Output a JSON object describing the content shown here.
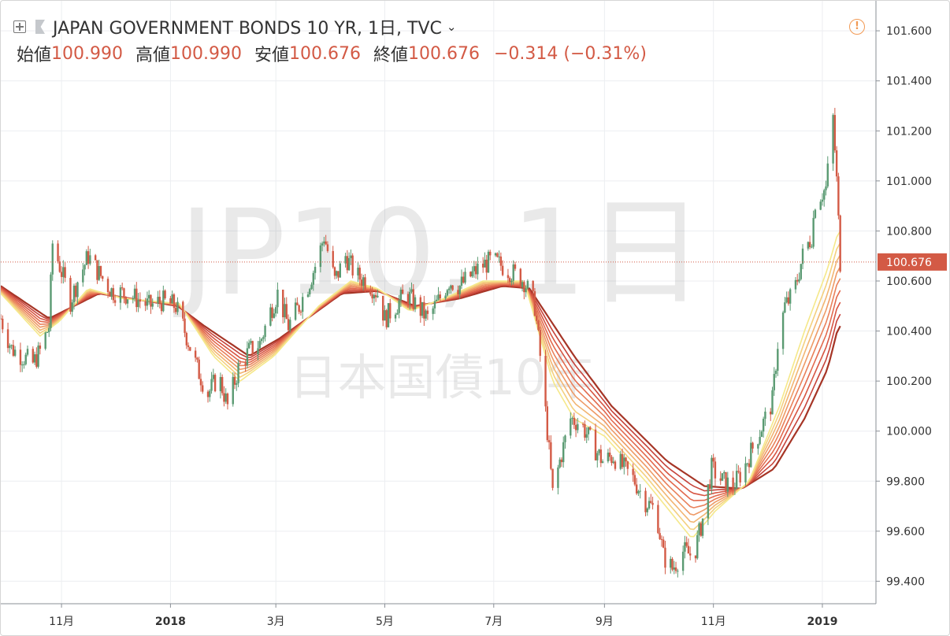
{
  "header": {
    "symbol_title": "JAPAN GOVERNMENT BONDS 10 YR, 1日, TVC",
    "open_label": "始値",
    "open_value": "100.990",
    "high_label": "高値",
    "high_value": "100.990",
    "low_label": "安値",
    "low_value": "100.676",
    "close_label": "終値",
    "close_value": "100.676",
    "change": "−0.314 (−0.31%)"
  },
  "icons": {
    "expand": "plus-square-icon",
    "flag": "flag-icon",
    "chevron": "chevron-down-icon",
    "alert": "alert-circle-icon"
  },
  "colors": {
    "down_candle": "#d35a45",
    "up_candle": "#5a9a72",
    "price_tag": "#d35a45",
    "ma_ribbon": [
      "#f5e88a",
      "#f4d07f",
      "#f2b572",
      "#ee9a66",
      "#e9805a",
      "#e26a4e",
      "#d75643",
      "#c6433a",
      "#a63526"
    ]
  },
  "watermark": {
    "line1": "JP10, 1日",
    "line2": "日本国債10年"
  },
  "chart_data": {
    "type": "candlestick",
    "title": "JAPAN GOVERNMENT BONDS 10 YR, 1日, TVC",
    "series_name": "JP10",
    "y_axis_position": "right",
    "y_ticks": [
      99.4,
      99.6,
      99.8,
      100.0,
      100.2,
      100.4,
      100.6,
      100.8,
      101.0,
      101.2,
      101.4,
      101.6
    ],
    "y_tick_labels": [
      "99.400",
      "99.600",
      "99.800",
      "100.000",
      "100.200",
      "100.400",
      "100.600",
      "100.800",
      "101.000",
      "101.200",
      "101.400",
      "101.600"
    ],
    "ylim": [
      99.31,
      101.72
    ],
    "x_tick_labels": [
      "11月",
      "2018",
      "3月",
      "5月",
      "7月",
      "9月",
      "11月",
      "2019"
    ],
    "x_tick_dates": [
      "2017-11-01",
      "2018-01-01",
      "2018-03-01",
      "2018-05-01",
      "2018-07-01",
      "2018-09-01",
      "2018-11-01",
      "2019-01-01"
    ],
    "x_range": [
      "2017-09-28",
      "2019-01-31"
    ],
    "last_price": 100.676,
    "last_price_label": "100.676",
    "last_date": "2019-01-11",
    "grid": true,
    "close_path": [
      [
        "2017-09-28",
        100.45
      ],
      [
        "2017-10-04",
        100.33
      ],
      [
        "2017-10-10",
        100.3
      ],
      [
        "2017-10-16",
        100.27
      ],
      [
        "2017-10-20",
        100.32
      ],
      [
        "2017-10-25",
        100.42
      ],
      [
        "2017-10-27",
        100.75
      ],
      [
        "2017-10-31",
        100.66
      ],
      [
        "2017-11-06",
        100.52
      ],
      [
        "2017-11-10",
        100.6
      ],
      [
        "2017-11-16",
        100.7
      ],
      [
        "2017-11-22",
        100.63
      ],
      [
        "2017-11-29",
        100.56
      ],
      [
        "2017-12-06",
        100.55
      ],
      [
        "2017-12-13",
        100.53
      ],
      [
        "2017-12-20",
        100.5
      ],
      [
        "2017-12-27",
        100.52
      ],
      [
        "2018-01-04",
        100.5
      ],
      [
        "2018-01-10",
        100.38
      ],
      [
        "2018-01-16",
        100.25
      ],
      [
        "2018-01-22",
        100.15
      ],
      [
        "2018-01-28",
        100.22
      ],
      [
        "2018-02-02",
        100.1
      ],
      [
        "2018-02-08",
        100.25
      ],
      [
        "2018-02-14",
        100.32
      ],
      [
        "2018-02-20",
        100.35
      ],
      [
        "2018-02-26",
        100.48
      ],
      [
        "2018-03-02",
        100.55
      ],
      [
        "2018-03-08",
        100.42
      ],
      [
        "2018-03-14",
        100.5
      ],
      [
        "2018-03-20",
        100.6
      ],
      [
        "2018-03-25",
        100.7
      ],
      [
        "2018-03-28",
        100.78
      ],
      [
        "2018-04-03",
        100.6
      ],
      [
        "2018-04-09",
        100.7
      ],
      [
        "2018-04-15",
        100.62
      ],
      [
        "2018-04-21",
        100.6
      ],
      [
        "2018-04-27",
        100.55
      ],
      [
        "2018-05-01",
        100.45
      ],
      [
        "2018-05-07",
        100.5
      ],
      [
        "2018-05-13",
        100.55
      ],
      [
        "2018-05-19",
        100.5
      ],
      [
        "2018-05-25",
        100.45
      ],
      [
        "2018-05-31",
        100.52
      ],
      [
        "2018-06-06",
        100.6
      ],
      [
        "2018-06-12",
        100.58
      ],
      [
        "2018-06-18",
        100.62
      ],
      [
        "2018-06-24",
        100.66
      ],
      [
        "2018-06-30",
        100.68
      ],
      [
        "2018-07-06",
        100.66
      ],
      [
        "2018-07-12",
        100.63
      ],
      [
        "2018-07-18",
        100.6
      ],
      [
        "2018-07-24",
        100.5
      ],
      [
        "2018-07-27",
        100.3
      ],
      [
        "2018-07-31",
        100.0
      ],
      [
        "2018-08-03",
        99.75
      ],
      [
        "2018-08-07",
        99.88
      ],
      [
        "2018-08-13",
        100.05
      ],
      [
        "2018-08-19",
        100.03
      ],
      [
        "2018-08-25",
        99.95
      ],
      [
        "2018-08-31",
        99.88
      ],
      [
        "2018-09-06",
        99.9
      ],
      [
        "2018-09-12",
        99.85
      ],
      [
        "2018-09-18",
        99.8
      ],
      [
        "2018-09-24",
        99.72
      ],
      [
        "2018-09-30",
        99.68
      ],
      [
        "2018-10-04",
        99.5
      ],
      [
        "2018-10-09",
        99.45
      ],
      [
        "2018-10-15",
        99.52
      ],
      [
        "2018-10-21",
        99.5
      ],
      [
        "2018-10-26",
        99.65
      ],
      [
        "2018-10-31",
        99.85
      ],
      [
        "2018-11-06",
        99.8
      ],
      [
        "2018-11-12",
        99.78
      ],
      [
        "2018-11-18",
        99.85
      ],
      [
        "2018-11-24",
        99.95
      ],
      [
        "2018-11-30",
        100.05
      ],
      [
        "2018-12-04",
        100.12
      ],
      [
        "2018-12-07",
        100.35
      ],
      [
        "2018-12-11",
        100.5
      ],
      [
        "2018-12-16",
        100.55
      ],
      [
        "2018-12-21",
        100.7
      ],
      [
        "2018-12-26",
        100.78
      ],
      [
        "2018-12-28",
        100.92
      ],
      [
        "2019-01-03",
        100.97
      ],
      [
        "2019-01-07",
        101.25
      ],
      [
        "2019-01-09",
        101.0
      ],
      [
        "2019-01-11",
        100.676
      ]
    ],
    "series": [
      {
        "period": "shortest",
        "values": [
          [
            "2017-09-28",
            100.55
          ],
          [
            "2017-10-20",
            100.38
          ],
          [
            "2017-10-31",
            100.44
          ],
          [
            "2017-11-16",
            100.57
          ],
          [
            "2017-12-05",
            100.53
          ],
          [
            "2018-01-06",
            100.51
          ],
          [
            "2018-01-25",
            100.3
          ],
          [
            "2018-02-09",
            100.2
          ],
          [
            "2018-02-28",
            100.3
          ],
          [
            "2018-03-25",
            100.5
          ],
          [
            "2018-04-12",
            100.6
          ],
          [
            "2018-04-27",
            100.57
          ],
          [
            "2018-05-15",
            100.48
          ],
          [
            "2018-06-03",
            100.53
          ],
          [
            "2018-06-25",
            100.6
          ],
          [
            "2018-07-18",
            100.6
          ],
          [
            "2018-08-03",
            100.2
          ],
          [
            "2018-08-15",
            100.05
          ],
          [
            "2018-09-01",
            99.98
          ],
          [
            "2018-09-24",
            99.8
          ],
          [
            "2018-10-20",
            99.57
          ],
          [
            "2018-11-02",
            99.68
          ],
          [
            "2018-11-21",
            99.8
          ],
          [
            "2018-12-08",
            100.1
          ],
          [
            "2018-12-22",
            100.4
          ],
          [
            "2019-01-04",
            100.65
          ],
          [
            "2019-01-10",
            100.8
          ]
        ]
      },
      {
        "period": "longest",
        "values": [
          [
            "2017-09-28",
            100.58
          ],
          [
            "2017-10-25",
            100.45
          ],
          [
            "2017-11-22",
            100.55
          ],
          [
            "2018-01-05",
            100.5
          ],
          [
            "2018-01-20",
            100.42
          ],
          [
            "2018-02-14",
            100.3
          ],
          [
            "2018-03-03",
            100.37
          ],
          [
            "2018-04-07",
            100.55
          ],
          [
            "2018-04-27",
            100.56
          ],
          [
            "2018-05-18",
            100.5
          ],
          [
            "2018-06-12",
            100.53
          ],
          [
            "2018-07-06",
            100.58
          ],
          [
            "2018-07-21",
            100.57
          ],
          [
            "2018-08-15",
            100.3
          ],
          [
            "2018-09-05",
            100.1
          ],
          [
            "2018-10-06",
            99.88
          ],
          [
            "2018-10-27",
            99.78
          ],
          [
            "2018-11-17",
            99.77
          ],
          [
            "2018-12-05",
            99.85
          ],
          [
            "2018-12-22",
            100.05
          ],
          [
            "2019-01-04",
            100.25
          ],
          [
            "2019-01-10",
            100.42
          ]
        ]
      }
    ]
  }
}
